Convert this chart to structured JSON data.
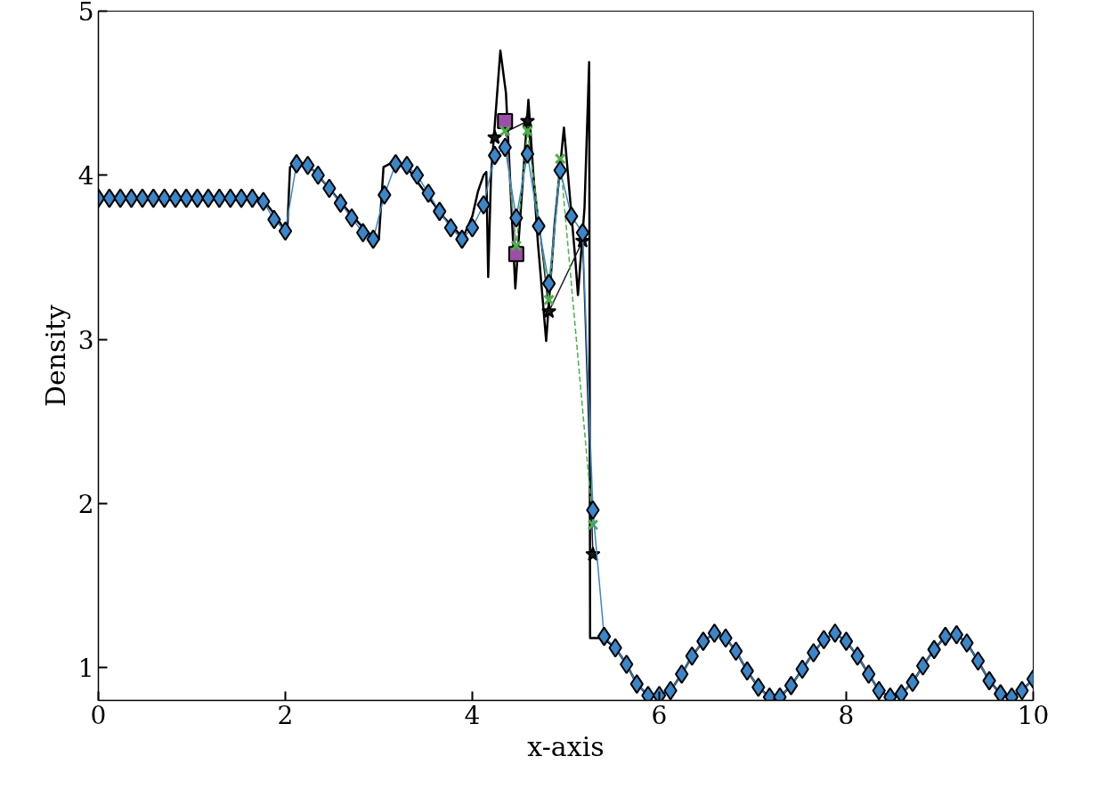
{
  "chart_data": {
    "type": "line",
    "xlabel": "x-axis",
    "ylabel": "Density",
    "xlim": [
      0,
      10
    ],
    "ylim": [
      0.8,
      5.0
    ],
    "xticks": [
      0,
      2,
      4,
      6,
      8,
      10
    ],
    "yticks": [
      1,
      2,
      3,
      4,
      5
    ],
    "grid": false,
    "series": [
      {
        "color": "#000000",
        "line_style": "solid",
        "x": [
          0,
          1.75,
          1.9,
          2.0,
          2.02,
          2.05,
          2.15,
          2.3,
          2.47,
          2.6,
          2.8,
          2.96,
          3.0,
          3.05,
          3.15,
          3.3,
          3.5,
          3.7,
          3.9,
          4.0,
          4.06,
          4.12,
          4.15,
          4.17,
          4.2,
          4.3,
          4.36,
          4.46,
          4.6,
          4.7,
          4.79,
          4.88,
          4.98,
          5.1,
          5.13,
          5.2,
          5.25,
          5.26,
          5.4,
          5.53,
          5.65,
          5.76,
          5.88,
          6.0,
          6.12,
          6.24,
          6.35,
          6.47,
          6.59,
          6.71,
          6.82,
          6.94,
          7.06,
          7.18,
          7.29,
          7.41,
          7.53,
          7.65,
          7.76,
          7.88,
          8.0,
          8.12,
          8.24,
          8.35,
          8.47,
          8.59,
          8.71,
          8.82,
          8.94,
          9.06,
          9.18,
          9.29,
          9.41,
          9.53,
          9.65,
          9.77,
          9.88,
          10.0
        ],
        "values": [
          3.86,
          3.86,
          3.75,
          3.66,
          3.66,
          4.05,
          4.08,
          4.03,
          3.92,
          3.83,
          3.7,
          3.61,
          3.61,
          4.05,
          4.08,
          4.05,
          3.89,
          3.74,
          3.62,
          3.75,
          3.9,
          4.0,
          4.02,
          3.38,
          4.0,
          4.76,
          4.5,
          3.31,
          4.46,
          3.6,
          2.99,
          3.7,
          4.29,
          3.5,
          3.27,
          3.8,
          4.69,
          1.18,
          1.18,
          1.12,
          1.02,
          0.9,
          0.83,
          0.83,
          0.86,
          0.96,
          1.07,
          1.16,
          1.21,
          1.18,
          1.1,
          0.98,
          0.88,
          0.82,
          0.82,
          0.89,
          0.99,
          1.09,
          1.17,
          1.21,
          1.16,
          1.07,
          0.96,
          0.86,
          0.82,
          0.84,
          0.91,
          1.01,
          1.11,
          1.19,
          1.2,
          1.15,
          1.04,
          0.92,
          0.84,
          0.82,
          0.86,
          0.93
        ]
      },
      {
        "color": "#1a1a1a",
        "marker": "star",
        "line_style": "solid",
        "x": [
          4.24,
          4.59,
          4.82,
          5.18,
          5.29
        ],
        "values": [
          4.23,
          4.33,
          3.17,
          3.6,
          1.69
        ]
      },
      {
        "color": "#9b4fa6",
        "marker": "square",
        "line_style": "solid",
        "x": [
          4.35,
          4.47
        ],
        "values": [
          4.33,
          3.52
        ]
      },
      {
        "color": "#4daf4a",
        "marker": "cross",
        "line_style": "dashed",
        "x": [
          4.35,
          4.47,
          4.59,
          4.82,
          4.94,
          5.29
        ],
        "values": [
          4.27,
          3.57,
          4.27,
          3.24,
          4.1,
          1.87
        ]
      },
      {
        "color": "#3a86c8",
        "marker": "diamond",
        "line_style": "solid",
        "x": [
          0,
          0.118,
          0.235,
          0.353,
          0.471,
          0.588,
          0.706,
          0.824,
          0.941,
          1.059,
          1.176,
          1.294,
          1.412,
          1.529,
          1.647,
          1.765,
          1.88,
          2.0,
          2.12,
          2.24,
          2.35,
          2.47,
          2.59,
          2.71,
          2.83,
          2.94,
          3.06,
          3.18,
          3.3,
          3.41,
          3.53,
          3.65,
          3.77,
          3.89,
          4.0,
          4.12,
          4.24,
          4.35,
          4.47,
          4.59,
          4.71,
          4.82,
          4.94,
          5.06,
          5.18,
          5.29,
          5.41,
          5.53,
          5.65,
          5.76,
          5.88,
          6.0,
          6.12,
          6.24,
          6.35,
          6.47,
          6.59,
          6.71,
          6.82,
          6.94,
          7.06,
          7.18,
          7.29,
          7.41,
          7.53,
          7.65,
          7.76,
          7.88,
          8.0,
          8.12,
          8.24,
          8.35,
          8.47,
          8.59,
          8.71,
          8.82,
          8.94,
          9.06,
          9.18,
          9.29,
          9.41,
          9.53,
          9.65,
          9.77,
          9.88,
          10.0
        ],
        "values": [
          3.86,
          3.86,
          3.86,
          3.86,
          3.86,
          3.86,
          3.86,
          3.86,
          3.86,
          3.86,
          3.86,
          3.86,
          3.86,
          3.86,
          3.86,
          3.84,
          3.73,
          3.66,
          4.07,
          4.06,
          4.0,
          3.92,
          3.83,
          3.74,
          3.65,
          3.61,
          3.88,
          4.07,
          4.06,
          4.0,
          3.89,
          3.78,
          3.68,
          3.61,
          3.68,
          3.82,
          4.12,
          4.17,
          3.74,
          4.13,
          3.69,
          3.34,
          4.03,
          3.75,
          3.65,
          1.96,
          1.19,
          1.12,
          1.02,
          0.9,
          0.83,
          0.83,
          0.86,
          0.96,
          1.07,
          1.16,
          1.21,
          1.18,
          1.1,
          0.98,
          0.88,
          0.82,
          0.82,
          0.89,
          0.99,
          1.09,
          1.17,
          1.21,
          1.16,
          1.07,
          0.96,
          0.86,
          0.82,
          0.84,
          0.91,
          1.01,
          1.11,
          1.19,
          1.2,
          1.15,
          1.04,
          0.92,
          0.84,
          0.82,
          0.86,
          0.93
        ]
      }
    ]
  }
}
